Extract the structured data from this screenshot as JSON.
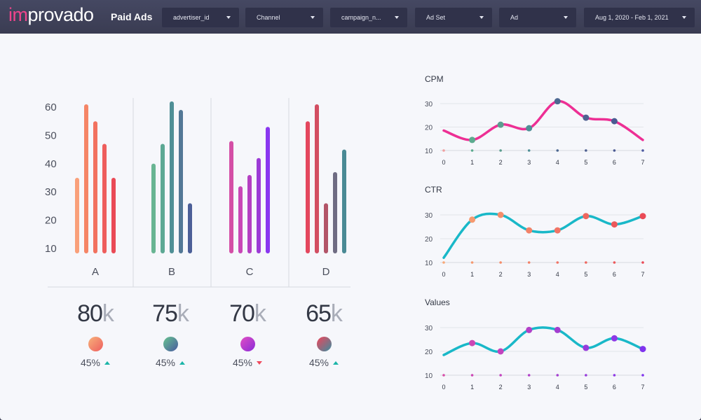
{
  "header": {
    "logo_im": "im",
    "logo_rest": "provado",
    "title": "Paid Ads",
    "filters": [
      {
        "label": "advertiser_id"
      },
      {
        "label": "Channel"
      },
      {
        "label": "campaign_n..."
      },
      {
        "label": "Ad Set"
      },
      {
        "label": "Ad"
      },
      {
        "label": "Aug 1, 2020 - Feb 1, 2021"
      }
    ]
  },
  "bar_chart": {
    "type": "bar",
    "yticks": [
      "60",
      "50",
      "40",
      "30",
      "20",
      "10"
    ],
    "ylim": [
      7,
      62
    ],
    "groups": [
      {
        "label": "A",
        "values": [
          35,
          61,
          55,
          47,
          35
        ],
        "colors": [
          "#f9a07a",
          "#f58566",
          "#f2725f",
          "#ee5e5c",
          "#ea4a56"
        ]
      },
      {
        "label": "B",
        "values": [
          40,
          47,
          62,
          59,
          26
        ],
        "colors": [
          "#69b593",
          "#5ca894",
          "#4f8f96",
          "#537896",
          "#4c5f98"
        ]
      },
      {
        "label": "C",
        "values": [
          48,
          32,
          36,
          42,
          53
        ],
        "colors": [
          "#d44fa6",
          "#c947b6",
          "#b43fc2",
          "#9c3bd6",
          "#8a37f0"
        ]
      },
      {
        "label": "D",
        "values": [
          55,
          61,
          26,
          37,
          45
        ],
        "colors": [
          "#e4475e",
          "#d24e62",
          "#b25468",
          "#6f6c83",
          "#4a8a95"
        ]
      }
    ]
  },
  "kpis": [
    {
      "value": "80",
      "suffix": "k",
      "percent": "45%",
      "trend": "up",
      "grad": [
        "#f7b37a",
        "#ee5d5f"
      ]
    },
    {
      "value": "75",
      "suffix": "k",
      "percent": "45%",
      "trend": "up",
      "grad": [
        "#66c48f",
        "#4a5aa0"
      ]
    },
    {
      "value": "70",
      "suffix": "k",
      "percent": "45%",
      "trend": "down",
      "grad": [
        "#e24fc4",
        "#8a2bd8"
      ]
    },
    {
      "value": "65",
      "suffix": "k",
      "percent": "45%",
      "trend": "up",
      "grad": [
        "#f0445a",
        "#3b8ea0"
      ]
    }
  ],
  "chart_data": [
    {
      "type": "line",
      "title": "CPM",
      "x": [
        0,
        1,
        2,
        3,
        4,
        5,
        6,
        7
      ],
      "y": [
        18.5,
        14.5,
        21,
        19.5,
        31,
        24,
        22.5,
        14.5
      ],
      "yticks": [
        10,
        20,
        30
      ],
      "ylim": [
        10,
        30
      ],
      "line_color": "#ed2f94",
      "marker_colors": [
        "#f0a0a0",
        "#5cab8f",
        "#5b9e8f",
        "#4f8f96",
        "#4d6891",
        "#4f6190",
        "#4a5a92",
        "#4c5aa0"
      ],
      "show_markers": [
        false,
        true,
        true,
        true,
        true,
        true,
        true,
        false
      ]
    },
    {
      "type": "line",
      "title": "CTR",
      "x": [
        0,
        1,
        2,
        3,
        4,
        5,
        6,
        7
      ],
      "y": [
        12,
        28,
        30,
        23.5,
        23.5,
        29.5,
        26,
        29.5
      ],
      "yticks": [
        10,
        20,
        30
      ],
      "ylim": [
        10,
        30
      ],
      "line_color": "#19b8c8",
      "marker_colors": [
        "#f7a878",
        "#f59a70",
        "#f48d6a",
        "#f28268",
        "#f17465",
        "#ee675f",
        "#ec595b",
        "#ea4a56"
      ],
      "show_markers": [
        false,
        true,
        true,
        true,
        true,
        true,
        true,
        true
      ]
    },
    {
      "type": "line",
      "title": "Values",
      "x": [
        0,
        1,
        2,
        3,
        4,
        5,
        6,
        7
      ],
      "y": [
        18.5,
        23.5,
        20,
        29,
        29,
        21.5,
        25.5,
        21
      ],
      "yticks": [
        10,
        20,
        30
      ],
      "ylim": [
        10,
        30
      ],
      "line_color": "#19b8c8",
      "marker_colors": [
        "#d64fa8",
        "#cc47b5",
        "#c244bf",
        "#b240c8",
        "#a33ed0",
        "#973bdc",
        "#8d38e6",
        "#7f33ee"
      ],
      "show_markers": [
        false,
        true,
        true,
        true,
        true,
        true,
        true,
        true
      ]
    }
  ]
}
